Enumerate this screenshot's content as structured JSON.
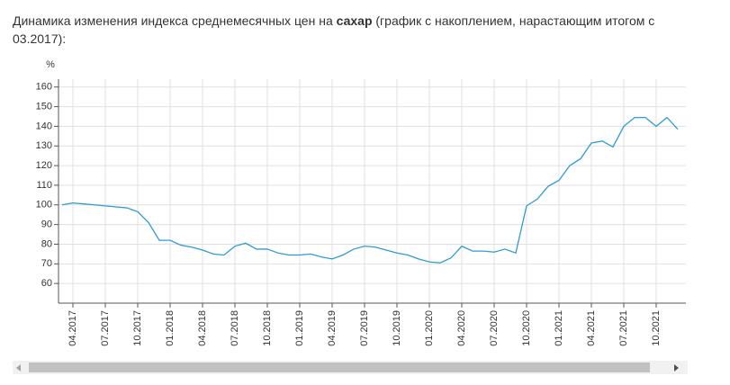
{
  "chart_data": {
    "type": "line",
    "title": "Динамика изменения индекса среднемесячных цен на ",
    "title_bold": "сахар",
    "title_end": " (график с накоплением, нарастающим итогом с 03.2017):",
    "y_label": "%",
    "categories": [
      null,
      "04.2017",
      null,
      null,
      "07.2017",
      null,
      null,
      "10.2017",
      null,
      null,
      "01.2018",
      null,
      null,
      "04.2018",
      null,
      null,
      "07.2018",
      null,
      null,
      "10.2018",
      null,
      null,
      "01.2019",
      null,
      null,
      "04.2019",
      null,
      null,
      "07.2019",
      null,
      null,
      "10.2019",
      null,
      null,
      "01.2020",
      null,
      null,
      "04.2020",
      null,
      null,
      "07.2020",
      null,
      null,
      "10.2020",
      null,
      null,
      "01.2021",
      null,
      null,
      "04.2021",
      null,
      null,
      "07.2021",
      null,
      null,
      "10.2021",
      null,
      null
    ],
    "values": [
      100,
      101,
      100.5,
      100,
      99.5,
      99,
      98.5,
      96.5,
      91,
      82,
      82,
      79.5,
      78.5,
      77,
      75,
      74.5,
      79,
      80.5,
      77.5,
      77.5,
      75.5,
      74.5,
      74.5,
      75,
      73.5,
      72.5,
      74.5,
      77.5,
      79,
      78.5,
      77,
      75.5,
      74.5,
      72.5,
      71,
      70.5,
      73,
      79,
      76.5,
      76.5,
      76,
      77.5,
      75.5,
      99.5,
      103,
      109.5,
      112.5,
      120,
      123.5,
      131.5,
      132.5,
      129.5,
      140,
      144.5,
      144.5,
      140,
      144.5,
      138.5
    ],
    "color": "#2f9bd3",
    "ylim": [
      50,
      164
    ],
    "yticks": [
      60,
      70,
      80,
      90,
      100,
      110,
      120,
      130,
      140,
      150,
      160
    ],
    "grid": true
  }
}
